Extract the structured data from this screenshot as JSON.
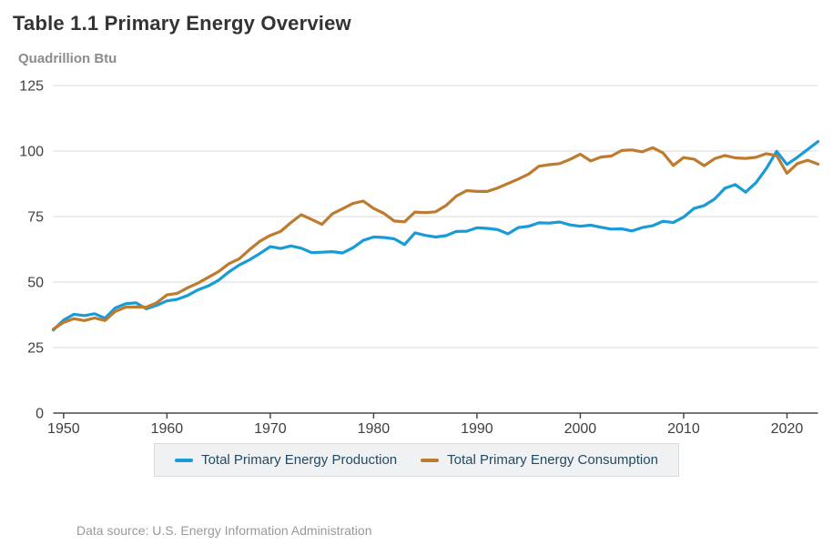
{
  "page": {
    "title": "Table 1.1 Primary Energy Overview",
    "units_label": "Quadrillion Btu",
    "footer": "Data source: U.S. Energy Information Administration"
  },
  "legend": {
    "items": [
      {
        "label": "Total Primary Energy Production",
        "color": "#189bd7"
      },
      {
        "label": "Total Primary Energy Consumption",
        "color": "#be7b2f"
      }
    ]
  },
  "colors": {
    "production_line": "#189bd7",
    "consumption_line": "#be7b2f",
    "gridline": "#d8d8d8",
    "axis": "#4a4a4a",
    "tick_label": "#404040"
  },
  "chart_data": {
    "type": "line",
    "title": "Table 1.1 Primary Energy Overview",
    "xlabel": "",
    "ylabel": "Quadrillion Btu",
    "ylim": [
      0,
      125
    ],
    "yticks": [
      0,
      25,
      50,
      75,
      100,
      125
    ],
    "xticks": [
      1950,
      1960,
      1970,
      1980,
      1990,
      2000,
      2010,
      2020
    ],
    "grid": "horizontal",
    "legend_position": "bottom",
    "x": [
      1949,
      1950,
      1951,
      1952,
      1953,
      1954,
      1955,
      1956,
      1957,
      1958,
      1959,
      1960,
      1961,
      1962,
      1963,
      1964,
      1965,
      1966,
      1967,
      1968,
      1969,
      1970,
      1971,
      1972,
      1973,
      1974,
      1975,
      1976,
      1977,
      1978,
      1979,
      1980,
      1981,
      1982,
      1983,
      1984,
      1985,
      1986,
      1987,
      1988,
      1989,
      1990,
      1991,
      1992,
      1993,
      1994,
      1995,
      1996,
      1997,
      1998,
      1999,
      2000,
      2001,
      2002,
      2003,
      2004,
      2005,
      2006,
      2007,
      2008,
      2009,
      2010,
      2011,
      2012,
      2013,
      2014,
      2015,
      2016,
      2017,
      2018,
      2019,
      2020,
      2021,
      2022,
      2023
    ],
    "series": [
      {
        "name": "Total Primary Energy Production",
        "color": "#189bd7",
        "values": [
          31.7,
          35.5,
          37.7,
          37.2,
          37.9,
          36.2,
          40.1,
          41.7,
          42.1,
          39.8,
          41.1,
          42.8,
          43.4,
          44.9,
          47.0,
          48.5,
          50.7,
          53.9,
          56.5,
          58.5,
          60.9,
          63.5,
          62.8,
          63.8,
          62.9,
          61.2,
          61.4,
          61.6,
          61.1,
          63.1,
          65.9,
          67.2,
          67.0,
          66.5,
          64.3,
          68.8,
          67.8,
          67.2,
          67.7,
          69.3,
          69.4,
          70.7,
          70.5,
          70.0,
          68.4,
          70.8,
          71.3,
          72.6,
          72.5,
          72.9,
          71.8,
          71.3,
          71.7,
          70.9,
          70.2,
          70.3,
          69.5,
          70.8,
          71.5,
          73.2,
          72.7,
          74.8,
          78.1,
          79.2,
          81.7,
          85.8,
          87.2,
          84.3,
          87.9,
          93.3,
          99.9,
          94.9,
          97.6,
          100.6,
          103.6
        ]
      },
      {
        "name": "Total Primary Energy Consumption",
        "color": "#be7b2f",
        "values": [
          32.0,
          34.6,
          36.0,
          35.3,
          36.3,
          35.3,
          38.8,
          40.4,
          40.5,
          40.4,
          42.1,
          45.1,
          45.7,
          47.8,
          49.6,
          51.8,
          54.0,
          57.0,
          58.9,
          62.4,
          65.6,
          67.8,
          69.3,
          72.7,
          75.7,
          73.9,
          72.0,
          76.0,
          78.0,
          80.0,
          80.9,
          78.1,
          76.2,
          73.3,
          73.0,
          76.7,
          76.5,
          76.8,
          79.2,
          82.8,
          84.9,
          84.6,
          84.6,
          85.9,
          87.6,
          89.3,
          91.2,
          94.2,
          94.8,
          95.2,
          96.8,
          98.8,
          96.2,
          97.7,
          98.1,
          100.2,
          100.4,
          99.7,
          101.3,
          99.3,
          94.5,
          97.5,
          96.9,
          94.4,
          97.1,
          98.3,
          97.4,
          97.2,
          97.6,
          99.0,
          98.3,
          91.5,
          95.2,
          96.5,
          95.0
        ]
      }
    ]
  }
}
